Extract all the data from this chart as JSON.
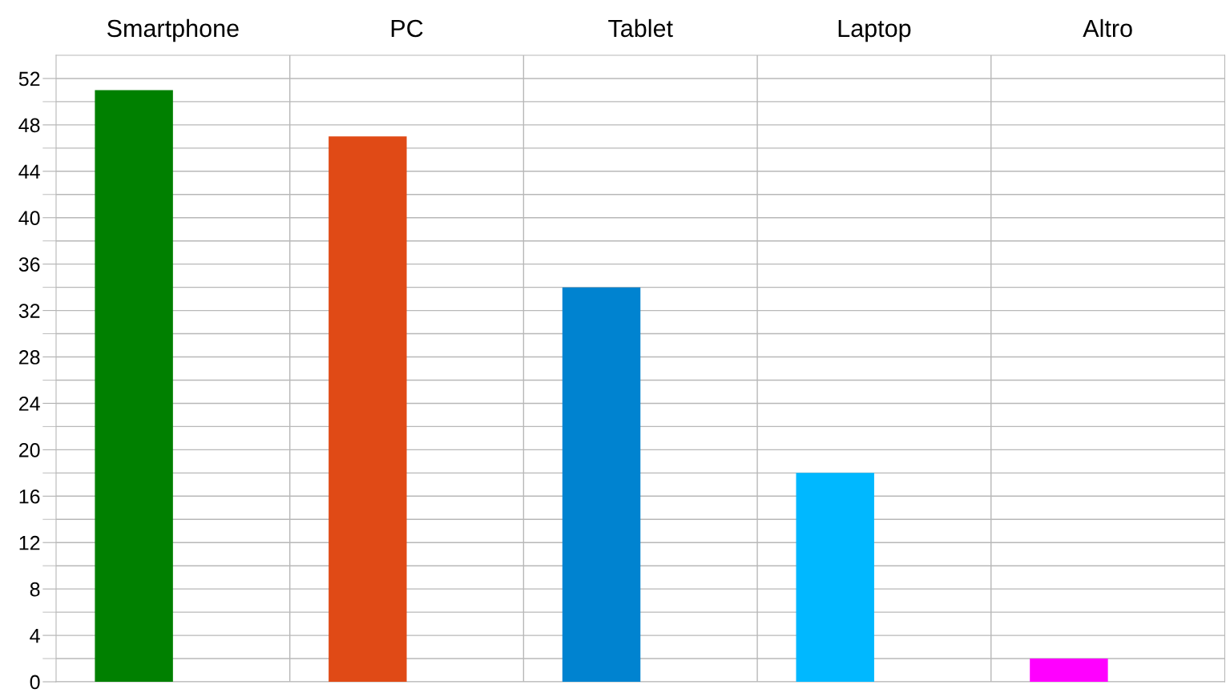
{
  "chart_data": {
    "type": "bar",
    "categories": [
      "Smartphone",
      "PC",
      "Tablet",
      "Laptop",
      "Altro"
    ],
    "values": [
      51,
      47,
      34,
      18,
      2
    ],
    "colors": [
      "#008000",
      "#e04a16",
      "#0083d0",
      "#00b8ff",
      "#ff00ff"
    ],
    "ylim": [
      0,
      54
    ],
    "yticks": [
      0,
      4,
      8,
      12,
      16,
      20,
      24,
      28,
      32,
      36,
      40,
      44,
      48,
      52
    ],
    "grid": true
  }
}
